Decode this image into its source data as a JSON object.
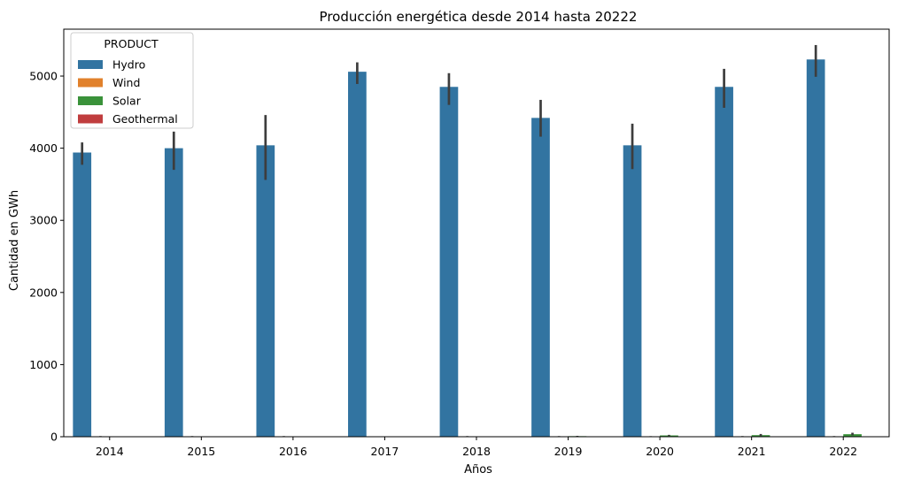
{
  "chart_data": {
    "type": "bar",
    "title": "Producción energética desde 2014 hasta 20222",
    "xlabel": "Años",
    "ylabel": "Cantidad en GWh",
    "categories": [
      "2014",
      "2015",
      "2016",
      "2017",
      "2018",
      "2019",
      "2020",
      "2021",
      "2022"
    ],
    "ylim": [
      0,
      5650
    ],
    "yticks": [
      0,
      1000,
      2000,
      3000,
      4000,
      5000
    ],
    "grid": false,
    "legend": {
      "title": "PRODUCT",
      "placement": "top-left"
    },
    "series": [
      {
        "name": "Hydro",
        "color": "#3274a1",
        "values": [
          3940,
          4000,
          4040,
          5060,
          4850,
          4420,
          4040,
          4850,
          5230
        ],
        "err_low": [
          3770,
          3700,
          3560,
          4890,
          4600,
          4160,
          3710,
          4560,
          4990
        ],
        "err_high": [
          4080,
          4230,
          4460,
          5190,
          5040,
          4670,
          4340,
          5100,
          5430
        ]
      },
      {
        "name": "Wind",
        "color": "#e1812c",
        "values": [
          6,
          6,
          6,
          3,
          6,
          6,
          5,
          6,
          6
        ],
        "err_low": [
          3,
          3,
          3,
          1,
          3,
          3,
          2,
          3,
          3
        ],
        "err_high": [
          9,
          9,
          9,
          5,
          9,
          9,
          8,
          9,
          9
        ]
      },
      {
        "name": "Solar",
        "color": "#3a923a",
        "values": [
          0,
          0,
          0,
          0,
          0,
          8,
          18,
          22,
          35
        ],
        "err_low": [
          0,
          0,
          0,
          0,
          0,
          4,
          10,
          10,
          20
        ],
        "err_high": [
          0,
          0,
          0,
          0,
          0,
          12,
          26,
          38,
          55
        ]
      },
      {
        "name": "Geothermal",
        "color": "#c03d3e",
        "values": [
          0,
          0,
          0,
          0,
          0,
          0,
          0,
          0,
          0
        ],
        "err_low": [
          0,
          0,
          0,
          0,
          0,
          0,
          0,
          0,
          0
        ],
        "err_high": [
          0,
          0,
          0,
          0,
          0,
          0,
          0,
          0,
          0
        ]
      }
    ]
  }
}
